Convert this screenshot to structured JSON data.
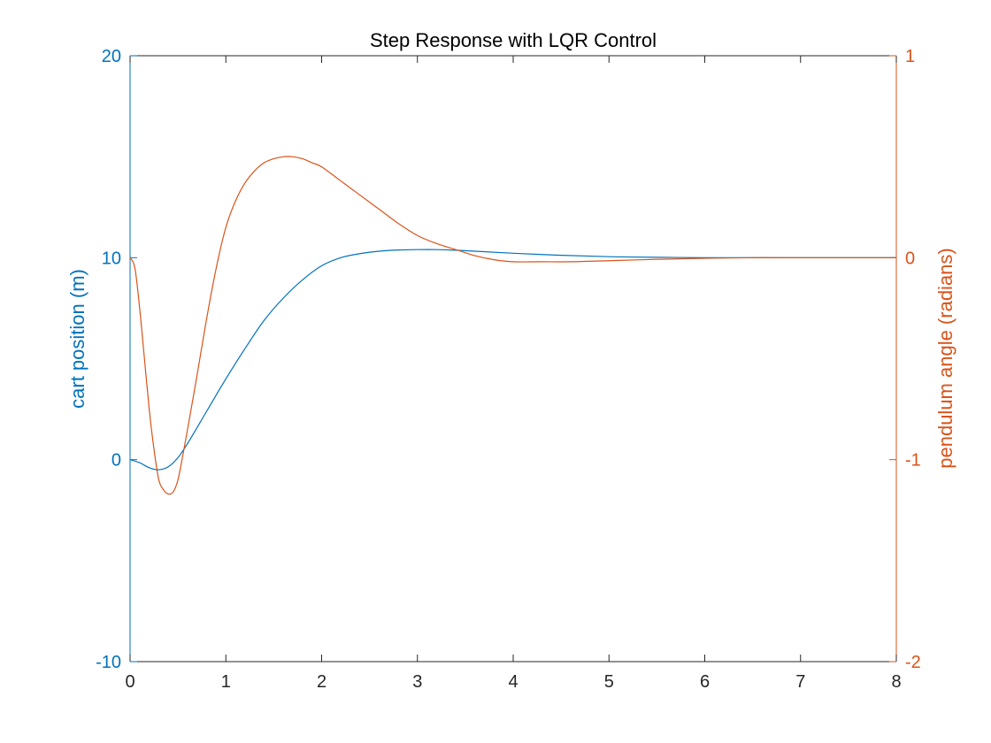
{
  "chart_data": {
    "type": "line",
    "title": "Step Response with LQR Control",
    "xlabel": "",
    "xlim": [
      0,
      8
    ],
    "x_ticks": [
      "0",
      "1",
      "2",
      "3",
      "4",
      "5",
      "6",
      "7",
      "8"
    ],
    "x_tick_values": [
      0,
      1,
      2,
      3,
      4,
      5,
      6,
      7,
      8
    ],
    "grid": false,
    "legend": "none",
    "axes": {
      "left": {
        "label": "cart position (m)",
        "ylim": [
          -10,
          20
        ],
        "ticks": [
          "-10",
          "0",
          "10",
          "20"
        ],
        "tick_values": [
          -10,
          0,
          10,
          20
        ],
        "color": "#0072BD"
      },
      "right": {
        "label": "pendulum angle (radians)",
        "ylim": [
          -2,
          1
        ],
        "ticks": [
          "-2",
          "-1",
          "0",
          "1"
        ],
        "tick_values": [
          -2,
          -1,
          0,
          1
        ],
        "color": "#D95319"
      }
    },
    "series": [
      {
        "axis": "left",
        "color": "#0072BD",
        "x": [
          0,
          0.1,
          0.2,
          0.3,
          0.4,
          0.5,
          0.6,
          0.8,
          1.0,
          1.2,
          1.4,
          1.6,
          1.8,
          2.0,
          2.2,
          2.4,
          2.6,
          2.8,
          3.0,
          3.2,
          3.4,
          3.6,
          4.0,
          4.5,
          5.0,
          5.5,
          6.0,
          6.5,
          7.0,
          8.0
        ],
        "values": [
          0,
          -0.15,
          -0.4,
          -0.5,
          -0.35,
          0.1,
          0.8,
          2.4,
          4.0,
          5.5,
          6.9,
          8.0,
          8.9,
          9.6,
          10.0,
          10.2,
          10.32,
          10.38,
          10.4,
          10.4,
          10.37,
          10.32,
          10.22,
          10.12,
          10.05,
          10.02,
          10.0,
          10.0,
          10.0,
          10.0
        ]
      },
      {
        "axis": "right",
        "color": "#D95319",
        "x": [
          0,
          0.05,
          0.1,
          0.15,
          0.2,
          0.25,
          0.3,
          0.35,
          0.4,
          0.45,
          0.5,
          0.55,
          0.6,
          0.7,
          0.8,
          0.9,
          1.0,
          1.1,
          1.2,
          1.3,
          1.4,
          1.5,
          1.6,
          1.7,
          1.8,
          1.9,
          2.0,
          2.2,
          2.4,
          2.6,
          2.8,
          3.0,
          3.2,
          3.4,
          3.6,
          3.8,
          4.0,
          4.3,
          4.6,
          5.0,
          5.5,
          6.0,
          6.5,
          7.0,
          8.0
        ],
        "values": [
          0,
          -0.05,
          -0.25,
          -0.5,
          -0.75,
          -0.95,
          -1.1,
          -1.15,
          -1.17,
          -1.16,
          -1.1,
          -0.98,
          -0.85,
          -0.58,
          -0.3,
          -0.05,
          0.15,
          0.28,
          0.37,
          0.43,
          0.47,
          0.49,
          0.5,
          0.5,
          0.49,
          0.47,
          0.45,
          0.38,
          0.31,
          0.24,
          0.17,
          0.11,
          0.07,
          0.04,
          0.01,
          -0.01,
          -0.02,
          -0.02,
          -0.02,
          -0.015,
          -0.008,
          -0.003,
          0.0,
          0.0,
          0.0
        ]
      }
    ]
  }
}
